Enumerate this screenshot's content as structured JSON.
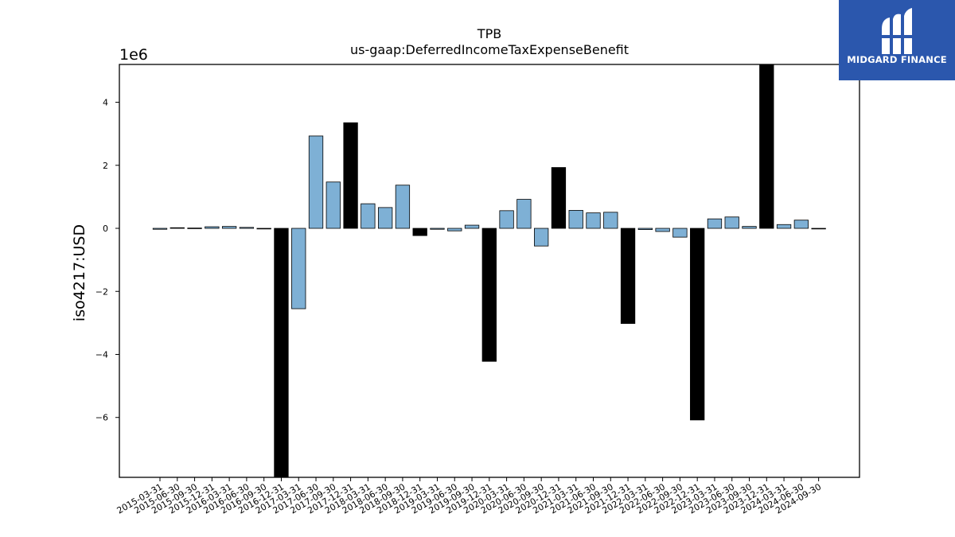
{
  "chart_data": {
    "type": "bar",
    "title": "TPB",
    "subtitle": "us-gaap:DeferredIncomeTaxExpenseBenefit",
    "ylabel": "iso4217:USD",
    "xlabel": "",
    "y_scale_label": "1e6",
    "ylim": [
      -7.9,
      5.2
    ],
    "yticks": [
      -6,
      -4,
      -2,
      0,
      2,
      4
    ],
    "ytick_labels": [
      "−6",
      "−4",
      "−2",
      "0",
      "2",
      "4"
    ],
    "categories": [
      "2015-03-31",
      "2015-06-30",
      "2015-09-30",
      "2015-12-31",
      "2016-03-31",
      "2016-06-30",
      "2016-09-30",
      "2016-12-31",
      "2017-03-31",
      "2017-06-30",
      "2017-09-30",
      "2017-12-31",
      "2018-03-31",
      "2018-06-30",
      "2018-09-30",
      "2018-12-31",
      "2019-03-31",
      "2019-06-30",
      "2019-09-30",
      "2019-12-31",
      "2020-03-31",
      "2020-06-30",
      "2020-09-30",
      "2020-12-31",
      "2021-03-31",
      "2021-06-30",
      "2021-09-30",
      "2021-12-31",
      "2022-03-31",
      "2022-06-30",
      "2022-09-30",
      "2022-12-31",
      "2023-03-31",
      "2023-06-30",
      "2023-09-30",
      "2023-12-31",
      "2024-03-31",
      "2024-06-30",
      "2024-09-30"
    ],
    "values": [
      -0.03,
      0.02,
      0.01,
      0.05,
      0.06,
      0.03,
      -0.02,
      -7.9,
      -2.55,
      2.93,
      1.47,
      3.35,
      0.78,
      0.66,
      1.37,
      -0.23,
      -0.03,
      -0.08,
      0.1,
      -4.22,
      0.56,
      0.92,
      -0.56,
      1.93,
      0.57,
      0.49,
      0.51,
      -3.02,
      -0.04,
      -0.1,
      -0.28,
      -6.08,
      0.3,
      0.36,
      0.06,
      5.2,
      0.12,
      0.26,
      -0.01
    ],
    "bar_colors": [
      "#7eb0d5",
      "#7eb0d5",
      "#7eb0d5",
      "#7eb0d5",
      "#7eb0d5",
      "#7eb0d5",
      "#7eb0d5",
      "#000000",
      "#7eb0d5",
      "#7eb0d5",
      "#7eb0d5",
      "#000000",
      "#7eb0d5",
      "#7eb0d5",
      "#7eb0d5",
      "#000000",
      "#7eb0d5",
      "#7eb0d5",
      "#7eb0d5",
      "#000000",
      "#7eb0d5",
      "#7eb0d5",
      "#7eb0d5",
      "#000000",
      "#7eb0d5",
      "#7eb0d5",
      "#7eb0d5",
      "#000000",
      "#7eb0d5",
      "#7eb0d5",
      "#7eb0d5",
      "#000000",
      "#7eb0d5",
      "#7eb0d5",
      "#7eb0d5",
      "#000000",
      "#7eb0d5",
      "#7eb0d5",
      "#7eb0d5"
    ],
    "grid": false,
    "legend": "none",
    "colors": {
      "quarter_bar": "#7eb0d5",
      "year_end_bar": "#000000",
      "edge": "#000000"
    }
  },
  "brand": {
    "name": "MIDGARD FINANCE",
    "background": "#2b57ad",
    "text_color": "#ffffff",
    "icon": "midgard-logo-icon"
  }
}
